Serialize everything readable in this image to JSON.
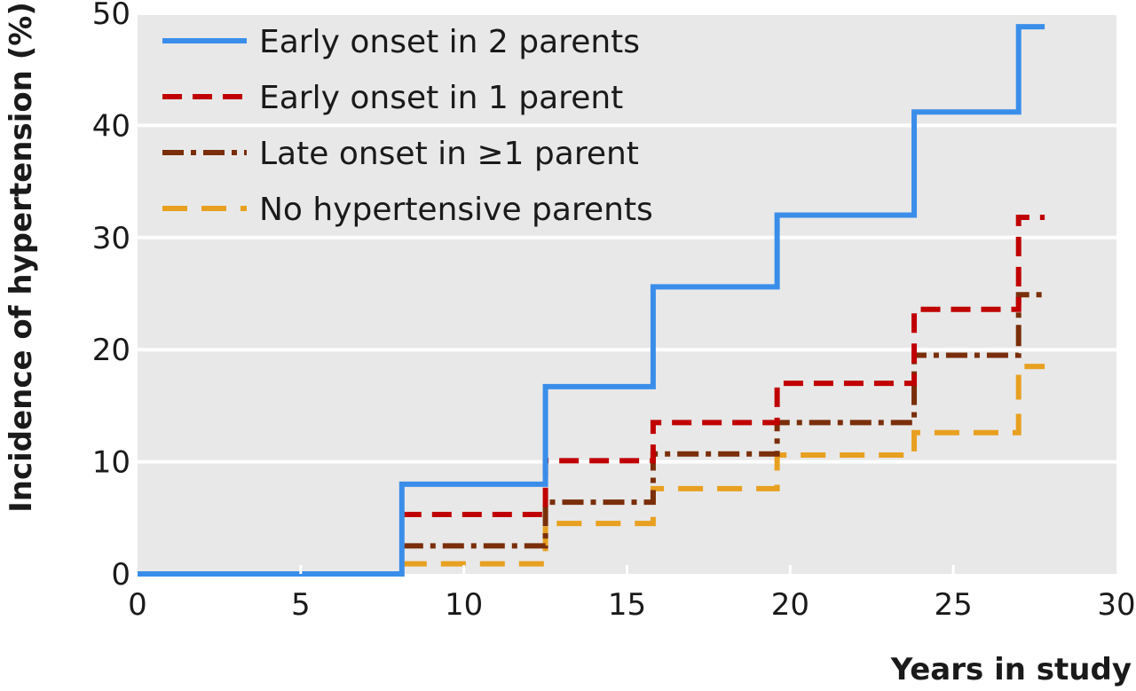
{
  "chart_data": {
    "type": "line",
    "step": true,
    "xlabel": "Years in study",
    "ylabel": "Incidence of hypertension (%)",
    "xlim": [
      0,
      30
    ],
    "ylim": [
      0,
      50
    ],
    "xticks": [
      "0",
      "5",
      "10",
      "15",
      "20",
      "25",
      "30"
    ],
    "yticks": [
      "0",
      "10",
      "20",
      "30",
      "40",
      "50"
    ],
    "grid": "horizontal",
    "legend_position": "top-left",
    "background_color": "#e8e8e8",
    "series": [
      {
        "name": "Early onset in 2 parents",
        "color": "#3a8eea",
        "dash": "solid",
        "x": [
          0,
          8.1,
          12.5,
          15.8,
          19.6,
          23.8,
          27.0,
          27.8
        ],
        "y": [
          0,
          8.0,
          16.7,
          25.6,
          32.0,
          41.2,
          48.8,
          48.8
        ]
      },
      {
        "name": "Early onset in 1 parent",
        "color": "#c00000",
        "dash": "dashed",
        "x": [
          8.1,
          12.5,
          15.8,
          19.6,
          23.8,
          27.0,
          27.8
        ],
        "y": [
          5.3,
          10.1,
          13.5,
          17.0,
          23.6,
          31.8,
          31.8
        ]
      },
      {
        "name": "Late onset in ≥1 parent",
        "color": "#7a2e0a",
        "dash": "dashdot",
        "x": [
          8.1,
          12.5,
          15.8,
          19.6,
          23.8,
          27.0,
          27.8
        ],
        "y": [
          2.5,
          6.4,
          10.7,
          13.5,
          19.5,
          24.9,
          24.9
        ]
      },
      {
        "name": "No hypertensive parents",
        "color": "#e8a020",
        "dash": "longdash",
        "x": [
          8.1,
          12.5,
          15.8,
          19.6,
          23.8,
          27.0,
          27.8
        ],
        "y": [
          0.9,
          4.5,
          7.6,
          10.6,
          12.6,
          18.5,
          18.5
        ]
      }
    ]
  }
}
